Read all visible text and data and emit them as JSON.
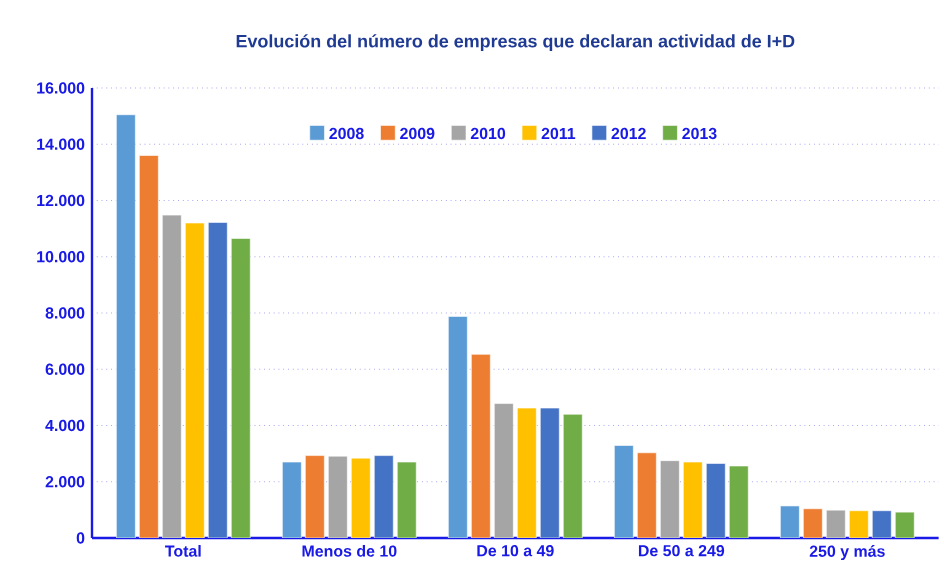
{
  "chart_data": {
    "type": "bar",
    "title": "Evolución del número de empresas que declaran actividad de I+D",
    "categories": [
      "Total",
      "Menos de 10",
      "De 10 a 49",
      "De 50 a 249",
      "250 y más"
    ],
    "series": [
      {
        "name": "2008",
        "color": "#5b9bd5",
        "values": [
          15050,
          2700,
          7880,
          3290,
          1140
        ]
      },
      {
        "name": "2009",
        "color": "#ed7d31",
        "values": [
          13600,
          2930,
          6530,
          3030,
          1040
        ]
      },
      {
        "name": "2010",
        "color": "#a5a5a5",
        "values": [
          11480,
          2910,
          4780,
          2750,
          990
        ]
      },
      {
        "name": "2011",
        "color": "#ffc000",
        "values": [
          11200,
          2840,
          4620,
          2700,
          970
        ]
      },
      {
        "name": "2012",
        "color": "#4472c4",
        "values": [
          11220,
          2930,
          4620,
          2650,
          970
        ]
      },
      {
        "name": "2013",
        "color": "#70ad47",
        "values": [
          10650,
          2700,
          4400,
          2560,
          920
        ]
      }
    ],
    "ylim": [
      0,
      16000
    ],
    "yticks": [
      0,
      {
        "value": 2000,
        "label": "2.000"
      },
      {
        "value": 4000,
        "label": "4.000"
      },
      {
        "value": 6000,
        "label": "6.000"
      },
      {
        "value": 8000,
        "label": "8.000"
      },
      {
        "value": 10000,
        "label": "10.000"
      },
      {
        "value": 12000,
        "label": "12.000"
      },
      {
        "value": 14000,
        "label": "14.000"
      },
      {
        "value": 16000,
        "label": "16.000"
      }
    ],
    "grid": "y",
    "legend": "top"
  }
}
